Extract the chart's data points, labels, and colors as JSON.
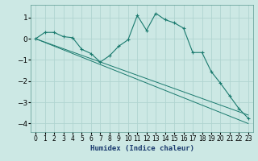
{
  "title": "",
  "xlabel": "Humidex (Indice chaleur)",
  "ylabel": "",
  "background_color": "#cce8e4",
  "grid_color": "#b0d4d0",
  "line_color": "#1a7a6e",
  "xlim": [
    -0.5,
    23.5
  ],
  "ylim": [
    -4.4,
    1.6
  ],
  "xticks": [
    0,
    1,
    2,
    3,
    4,
    5,
    6,
    7,
    8,
    9,
    10,
    11,
    12,
    13,
    14,
    15,
    16,
    17,
    18,
    19,
    20,
    21,
    22,
    23
  ],
  "yticks": [
    -4,
    -3,
    -2,
    -1,
    0,
    1
  ],
  "series1_x": [
    0,
    1,
    2,
    3,
    4,
    5,
    6,
    7,
    8,
    9,
    10,
    11,
    12,
    13,
    14,
    15,
    16,
    17,
    18,
    19,
    20,
    21,
    22,
    23
  ],
  "series1_y": [
    0.0,
    0.3,
    0.3,
    0.1,
    0.05,
    -0.5,
    -0.7,
    -1.1,
    -0.8,
    -0.35,
    -0.05,
    1.1,
    0.4,
    1.2,
    0.9,
    0.75,
    0.5,
    -0.65,
    -0.65,
    -1.55,
    -2.1,
    -2.7,
    -3.3,
    -3.75
  ],
  "series2_x": [
    0,
    23
  ],
  "series2_y": [
    0.0,
    -4.0
  ],
  "series3_x": [
    0,
    23
  ],
  "series3_y": [
    0.0,
    -3.6
  ]
}
